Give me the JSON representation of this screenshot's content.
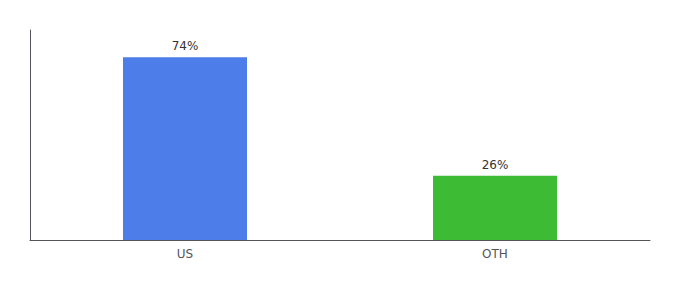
{
  "chart_data": {
    "type": "bar",
    "categories": [
      "US",
      "OTH"
    ],
    "values": [
      74,
      26
    ],
    "colors": [
      "#4d7de8",
      "#3dbb35"
    ],
    "ylim": [
      0,
      85
    ],
    "data_labels": true,
    "value_labels": [
      "74%",
      "26%"
    ],
    "tick_labels": "x",
    "grid": false
  }
}
